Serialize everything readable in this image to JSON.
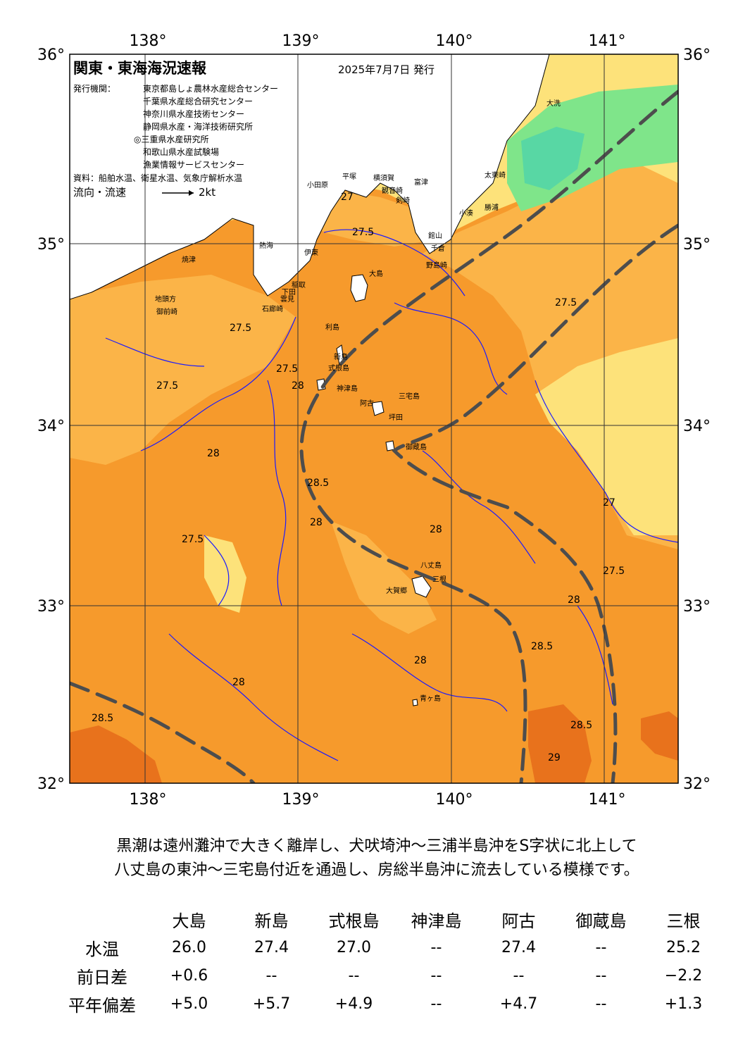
{
  "header": {
    "title": "関東・東海海況速報",
    "date": "2025年7月7日 発行",
    "issuer_label": "発行機関：",
    "issuers": [
      "東京都島しょ農林水産総合センター",
      "千葉県水産総合研究センター",
      "神奈川県水産技術センター",
      "静岡県水産・海洋技術研究所",
      "◎三重県水産研究所",
      "和歌山県水産試験場",
      "漁業情報サービスセンター"
    ],
    "source": "資料：船舶水温、衛星水温、気象庁解析水温",
    "legend_label": "流向・流速",
    "legend_value": "2kt"
  },
  "axes": {
    "lon_ticks": [
      "138°",
      "139°",
      "140°",
      "141°"
    ],
    "lat_ticks": [
      "36°",
      "35°",
      "34°",
      "33°",
      "32°"
    ]
  },
  "colors": {
    "t27": "#fde27a",
    "t27_5": "#fbb448",
    "t28": "#f69a2c",
    "t28_5": "#e8721c",
    "t_cool": "#7fe58a",
    "t_cold": "#58d7a4",
    "land": "#ffffff",
    "contour": "#1a1aff",
    "kuroshio": "#4d4d4d"
  },
  "place_names": [
    "大洗",
    "太東崎",
    "野島崎",
    "千倉",
    "館山",
    "勝浦",
    "小湊",
    "富津",
    "横須賀",
    "観音崎",
    "剣崎",
    "平塚",
    "小田原",
    "伊東",
    "稲取",
    "下田",
    "石廊崎",
    "御前崎",
    "焼津",
    "地頭方",
    "大島",
    "利島",
    "新島",
    "式根島",
    "神津島",
    "三宅島",
    "坪田",
    "阿古",
    "御蔵島",
    "八丈島",
    "三根",
    "大賀郷",
    "青ヶ島",
    "熱海",
    "雲見"
  ],
  "isotherm_labels": [
    "27",
    "27.5",
    "28",
    "28.5",
    "29"
  ],
  "summary": [
    "黒潮は遠州灘沖で大きく離岸し、犬吠埼沖～三浦半島沖をS字状に北上して",
    "八丈島の東沖～三宅島付近を通過し、房総半島沖に流去している模様です。"
  ],
  "table": {
    "columns": [
      "大島",
      "新島",
      "式根島",
      "神津島",
      "阿古",
      "御蔵島",
      "三根"
    ],
    "rows": [
      {
        "label": "水温",
        "values": [
          "26.0",
          "27.4",
          "27.0",
          "--",
          "27.4",
          "--",
          "25.2"
        ]
      },
      {
        "label": "前日差",
        "values": [
          "+0.6",
          "--",
          "--",
          "--",
          "--",
          "--",
          "−2.2"
        ]
      },
      {
        "label": "平年偏差",
        "values": [
          "+5.0",
          "+5.7",
          "+4.9",
          "--",
          "+4.7",
          "--",
          "+1.3"
        ]
      }
    ]
  }
}
